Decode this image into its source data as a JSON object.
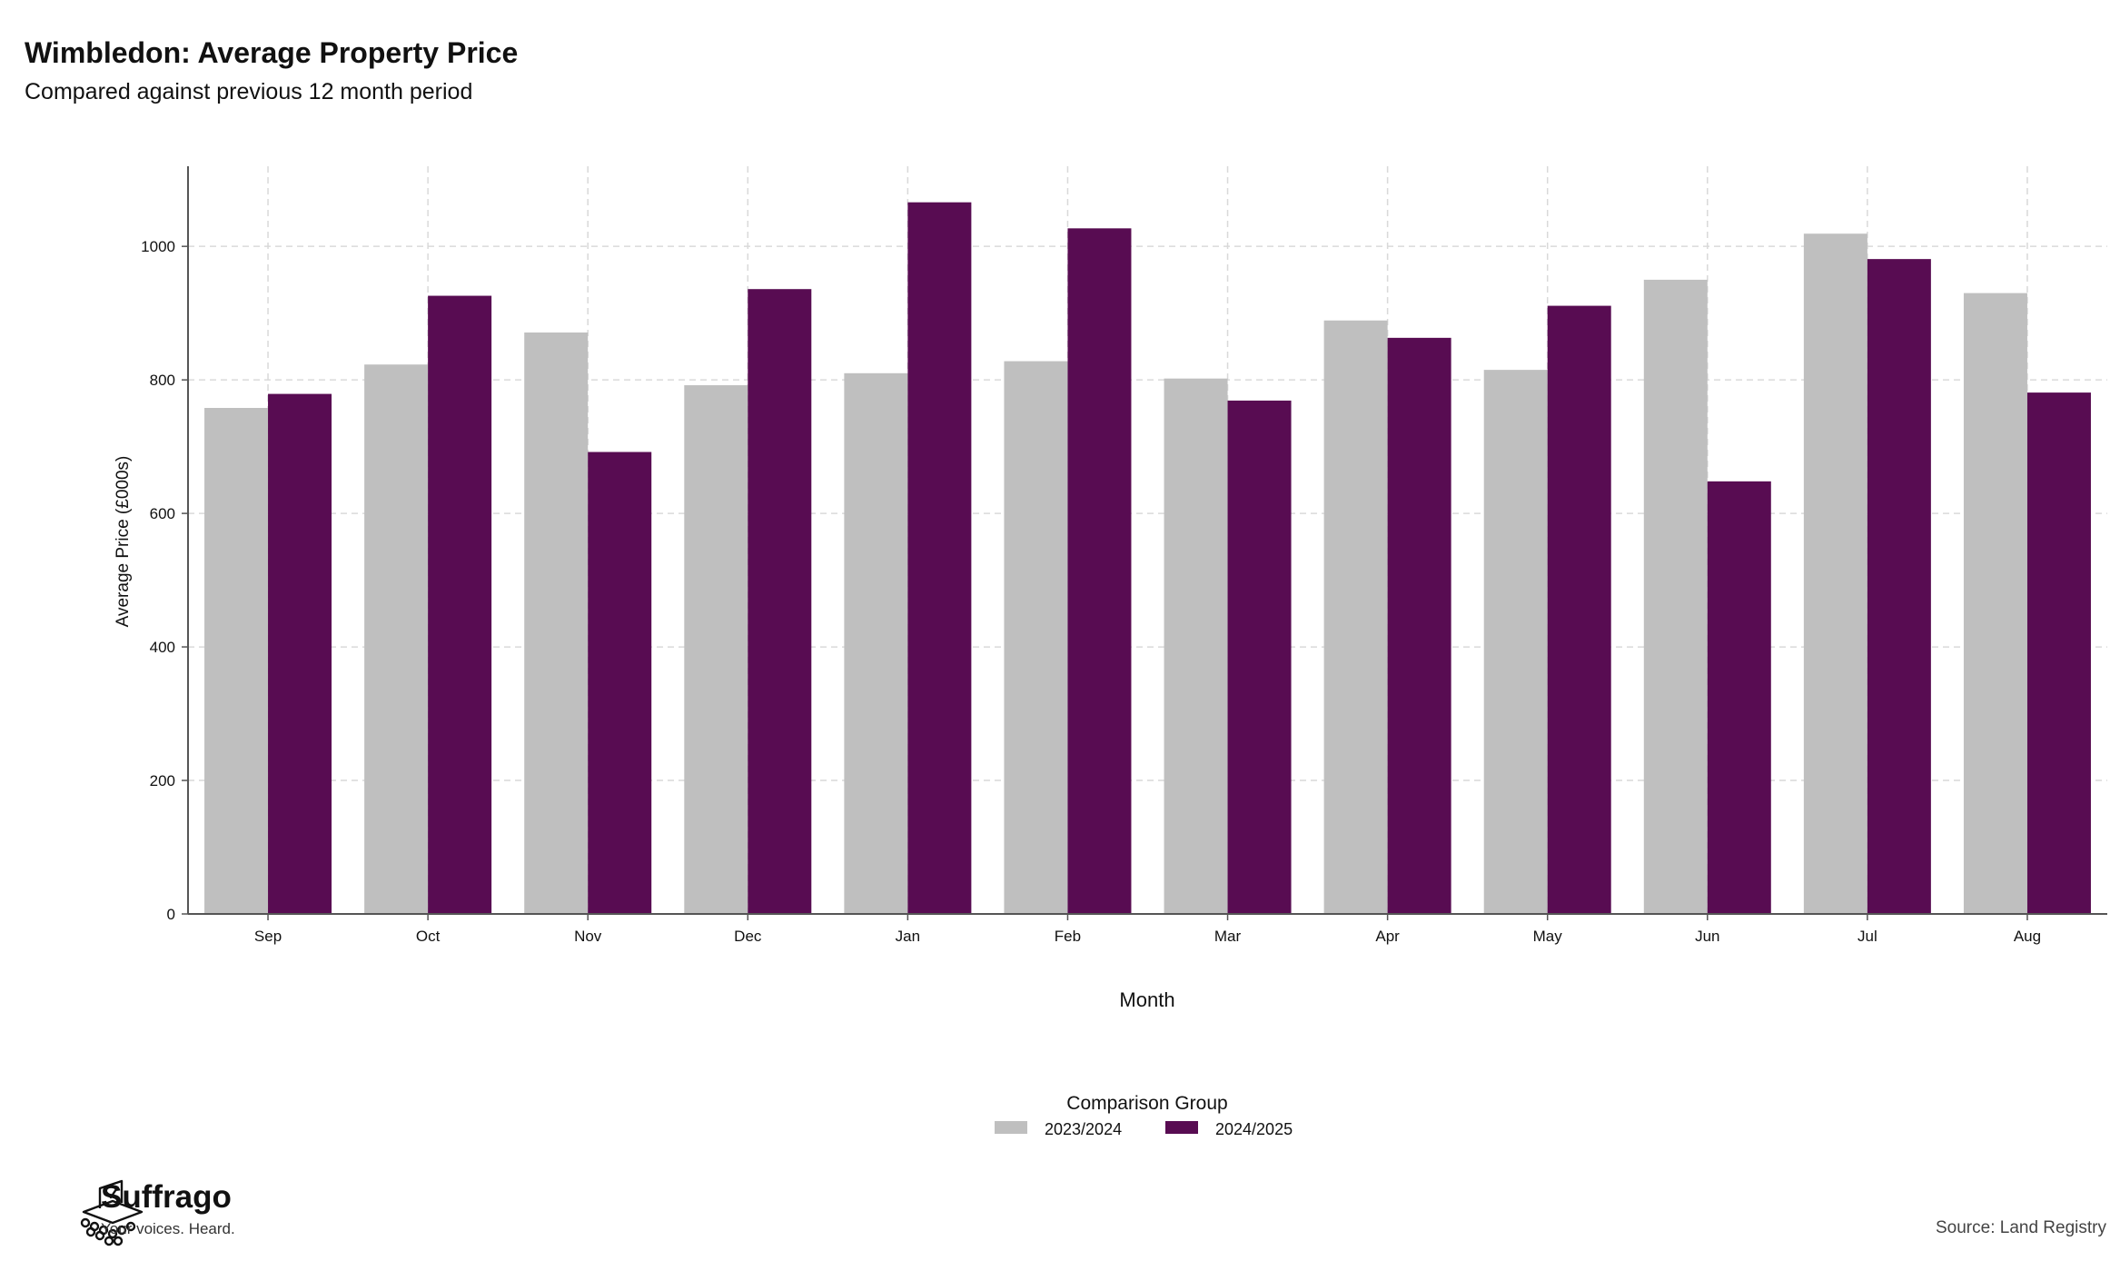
{
  "title": "Wimbledon: Average Property Price",
  "subtitle": "Compared against previous 12 month period",
  "source": "Source: Land Registry",
  "brand": {
    "name": "Suffrago",
    "tagline": "Your voices. Heard."
  },
  "colors": {
    "series_2023_2024": "#bfbfbf",
    "series_2024_2025": "#580c52",
    "grid": "#d9d9d9",
    "axis": "#555555"
  },
  "chart_data": {
    "type": "bar",
    "xlabel": "Month",
    "ylabel": "Average Price (£000s)",
    "ylim": [
      0,
      1120
    ],
    "yticks": [
      0,
      200,
      400,
      600,
      800,
      1000
    ],
    "grid": true,
    "legend": {
      "title": "Comparison Group",
      "position": "bottom-center"
    },
    "categories": [
      "Sep",
      "Oct",
      "Nov",
      "Dec",
      "Jan",
      "Feb",
      "Mar",
      "Apr",
      "May",
      "Jun",
      "Jul",
      "Aug"
    ],
    "series": [
      {
        "name": "2023/2024",
        "values": [
          758,
          823,
          871,
          792,
          810,
          828,
          802,
          889,
          815,
          950,
          1019,
          930
        ]
      },
      {
        "name": "2024/2025",
        "values": [
          779,
          926,
          692,
          936,
          1066,
          1027,
          769,
          863,
          911,
          648,
          981,
          781
        ]
      }
    ]
  }
}
